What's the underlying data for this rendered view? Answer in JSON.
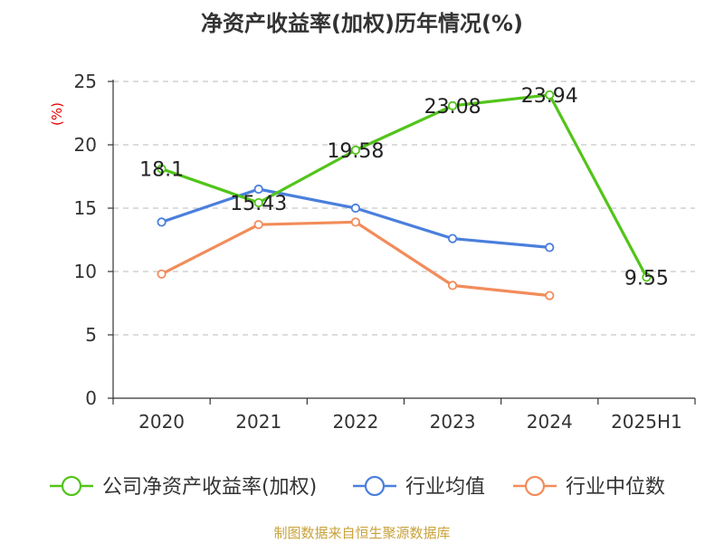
{
  "title": "净资产收益率(加权)历年情况(%)",
  "source": "制图数据来自恒生聚源数据库",
  "chart_data": {
    "type": "line",
    "title": "净资产收益率(加权)历年情况(%)",
    "ylabel": "(%)",
    "xlabel": "",
    "categories": [
      "2020",
      "2021",
      "2022",
      "2023",
      "2024",
      "2025H1"
    ],
    "ylim": [
      0,
      25
    ],
    "yticks": [
      0,
      5,
      10,
      15,
      20,
      25
    ],
    "grid": true,
    "legend_position": "bottom",
    "series": [
      {
        "name": "公司净资产收益率(加权)",
        "color": "#52c41a",
        "values": [
          18.1,
          15.43,
          19.58,
          23.08,
          23.94,
          9.55
        ],
        "labels": [
          "18.1",
          "15.43",
          "19.58",
          "23.08",
          "23.94",
          "9.55"
        ]
      },
      {
        "name": "行业均值",
        "color": "#4a7fdc",
        "values": [
          13.9,
          16.5,
          15.0,
          12.6,
          11.9,
          null
        ],
        "labels": null
      },
      {
        "name": "行业中位数",
        "color": "#f28c5a",
        "values": [
          9.8,
          13.7,
          13.9,
          8.9,
          8.1,
          null
        ],
        "labels": null
      }
    ]
  }
}
